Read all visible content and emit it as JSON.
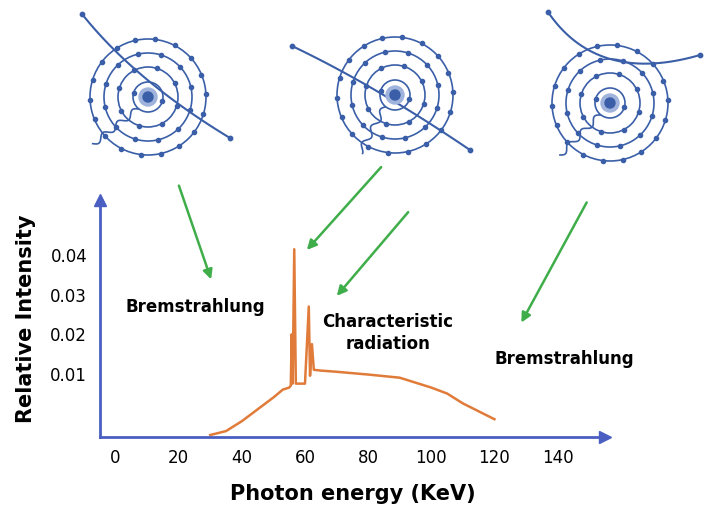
{
  "chart_data": {
    "type": "line",
    "x": [
      30,
      35,
      40,
      45,
      50,
      53,
      55,
      55.5,
      55.8,
      56.1,
      56.6,
      57.1,
      58,
      60,
      61.2,
      61.6,
      62.2,
      62.8,
      65,
      70,
      80,
      90,
      100,
      105,
      110,
      115,
      120
    ],
    "values": [
      -0.0055,
      -0.0045,
      -0.002,
      0.001,
      0.004,
      0.006,
      0.0065,
      0.007,
      0.02,
      0.0075,
      0.0415,
      0.0075,
      0.0075,
      0.0075,
      0.027,
      0.0095,
      0.0175,
      0.011,
      0.0108,
      0.0105,
      0.0098,
      0.009,
      0.0065,
      0.005,
      0.0025,
      0.0005,
      -0.0015
    ],
    "color": "#e07b39",
    "xlabel": "Photon energy (KeV)",
    "ylabel": "Relative Intensity",
    "xlim": [
      -5,
      155
    ],
    "ylim": [
      -0.006,
      0.054
    ],
    "xticks": [
      0,
      20,
      40,
      60,
      80,
      100,
      120,
      140
    ],
    "yticks": [
      0.01,
      0.02,
      0.03,
      0.04
    ],
    "annotations": [
      "Bremstrahlung",
      "Characteristic\nradiation",
      "Bremstrahlung"
    ]
  }
}
